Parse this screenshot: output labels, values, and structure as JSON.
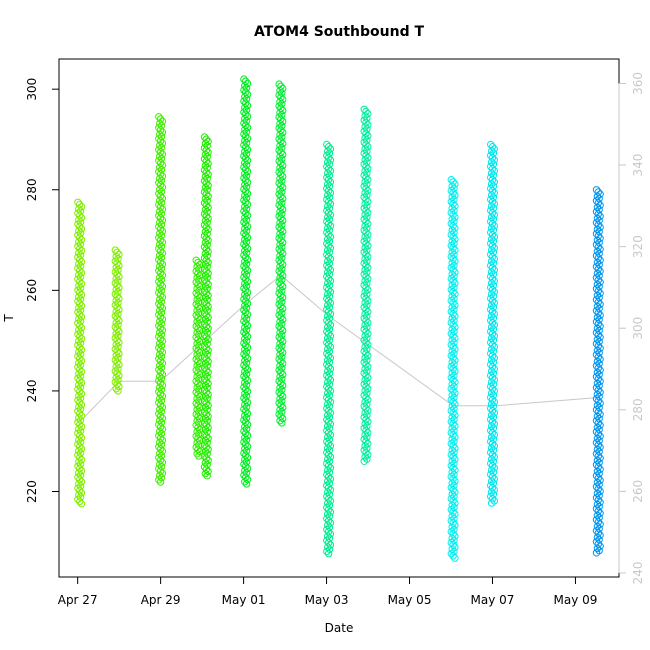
{
  "chart_data": {
    "type": "scatter",
    "title": "ATOM4 Southbound T",
    "xlabel": "Date",
    "ylabel": "T",
    "x_tick_labels": [
      "Apr 27",
      "Apr 29",
      "May 01",
      "May 03",
      "May 05",
      "May 07",
      "May 09"
    ],
    "x_tick_days": [
      0,
      2,
      4,
      6,
      8,
      10,
      12
    ],
    "xlim_days": [
      -0.45,
      13.05
    ],
    "ylim": [
      203,
      306
    ],
    "y_ticks": [
      220,
      240,
      260,
      280,
      300
    ],
    "y2lim": [
      239,
      366
    ],
    "y2_ticks": [
      240,
      260,
      280,
      300,
      320,
      340,
      360
    ],
    "grid": false,
    "series": [
      {
        "x": 0.05,
        "ymin": 217.5,
        "ymax": 277.5,
        "color": "#80ee00"
      },
      {
        "x": 0.95,
        "ymin": 240.0,
        "ymax": 268.0,
        "color": "#80ee00"
      },
      {
        "x": 2.0,
        "ymin": 221.5,
        "ymax": 294.5,
        "color": "#40ee00"
      },
      {
        "x": 2.9,
        "ymin": 227.0,
        "ymax": 266.0,
        "color": "#30ee00"
      },
      {
        "x": 3.1,
        "ymin": 223.0,
        "ymax": 290.5,
        "color": "#20ee00"
      },
      {
        "x": 4.05,
        "ymin": 221.5,
        "ymax": 302.0,
        "color": "#00ee20"
      },
      {
        "x": 4.9,
        "ymin": 233.5,
        "ymax": 301.0,
        "color": "#00ee30"
      },
      {
        "x": 6.05,
        "ymin": 207.5,
        "ymax": 289.0,
        "color": "#00ee90"
      },
      {
        "x": 6.95,
        "ymin": 226.0,
        "ymax": 296.0,
        "color": "#00eea0"
      },
      {
        "x": 9.05,
        "ymin": 206.5,
        "ymax": 282.0,
        "color": "#00eeee"
      },
      {
        "x": 10.0,
        "ymin": 217.5,
        "ymax": 289.0,
        "color": "#00e6ee"
      },
      {
        "x": 12.55,
        "ymin": 207.5,
        "ymax": 280.0,
        "color": "#0096ee"
      }
    ],
    "line_y2": {
      "color": "#c8c8c8",
      "points": [
        {
          "x": 0.05,
          "y": 277
        },
        {
          "x": 1.0,
          "y": 287
        },
        {
          "x": 2.0,
          "y": 287
        },
        {
          "x": 4.05,
          "y": 306
        },
        {
          "x": 4.9,
          "y": 313
        },
        {
          "x": 6.05,
          "y": 303
        },
        {
          "x": 9.05,
          "y": 281
        },
        {
          "x": 10.1,
          "y": 281
        },
        {
          "x": 12.55,
          "y": 283
        }
      ]
    }
  }
}
